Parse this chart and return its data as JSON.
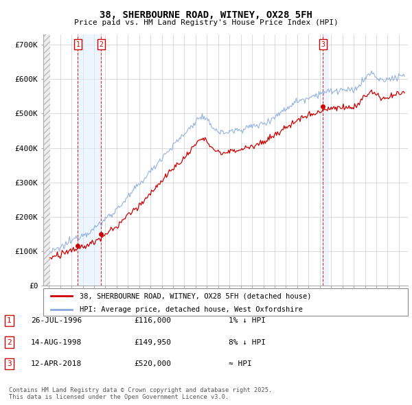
{
  "title_line1": "38, SHERBOURNE ROAD, WITNEY, OX28 5FH",
  "title_line2": "Price paid vs. HM Land Registry's House Price Index (HPI)",
  "background_color": "#ffffff",
  "grid_color": "#cccccc",
  "hpi_color": "#88aadd",
  "price_color": "#cc0000",
  "ylim": [
    0,
    730000
  ],
  "yticks": [
    0,
    100000,
    200000,
    300000,
    400000,
    500000,
    600000,
    700000
  ],
  "ytick_labels": [
    "£0",
    "£100K",
    "£200K",
    "£300K",
    "£400K",
    "£500K",
    "£600K",
    "£700K"
  ],
  "xlim_start": 1993.5,
  "xlim_end": 2025.8,
  "transactions": [
    {
      "num": 1,
      "date_num": 1996.56,
      "price": 116000,
      "label": "1"
    },
    {
      "num": 2,
      "date_num": 1998.62,
      "price": 149950,
      "label": "2"
    },
    {
      "num": 3,
      "date_num": 2018.28,
      "price": 520000,
      "label": "3"
    }
  ],
  "legend_line1": "38, SHERBOURNE ROAD, WITNEY, OX28 5FH (detached house)",
  "legend_line2": "HPI: Average price, detached house, West Oxfordshire",
  "table_entries": [
    {
      "num": "1",
      "date": "26-JUL-1996",
      "price": "£116,000",
      "note": "1% ↓ HPI"
    },
    {
      "num": "2",
      "date": "14-AUG-1998",
      "price": "£149,950",
      "note": "8% ↓ HPI"
    },
    {
      "num": "3",
      "date": "12-APR-2018",
      "price": "£520,000",
      "note": "≈ HPI"
    }
  ],
  "footer": "Contains HM Land Registry data © Crown copyright and database right 2025.\nThis data is licensed under the Open Government Licence v3.0."
}
